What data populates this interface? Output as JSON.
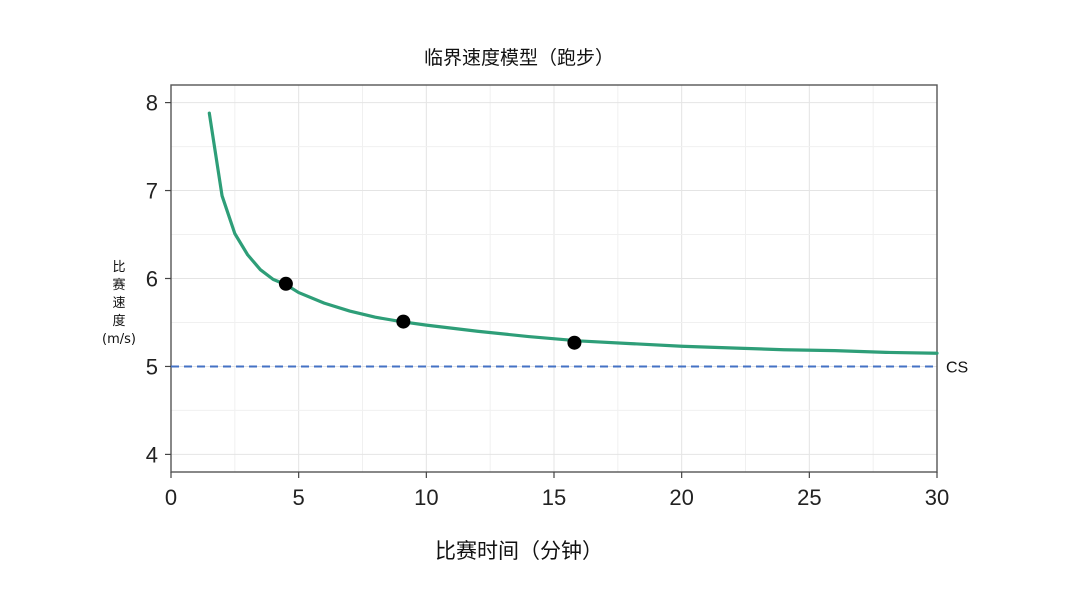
{
  "chart_data": {
    "type": "line",
    "title": "临界速度模型（跑步）",
    "xlabel": "比赛时间（分钟）",
    "ylabel_lines": [
      "比",
      "赛",
      "速",
      "度",
      "(m/s)"
    ],
    "xlim": [
      0,
      30
    ],
    "ylim": [
      3.8,
      8.2
    ],
    "xticks": [
      0,
      5,
      10,
      15,
      20,
      25,
      30
    ],
    "yticks": [
      4,
      5,
      6,
      7,
      8
    ],
    "grid": true,
    "legend": "none",
    "series": [
      {
        "kind": "curve",
        "color": "#2e9e78",
        "x": [
          1.5,
          2,
          2.5,
          3,
          3.5,
          4,
          4.5,
          5,
          6,
          7,
          8,
          9,
          10,
          12,
          14,
          16,
          18,
          20,
          22,
          24,
          26,
          28,
          30
        ],
        "y": [
          7.88,
          6.94,
          6.51,
          6.27,
          6.1,
          5.99,
          5.93,
          5.84,
          5.72,
          5.63,
          5.56,
          5.51,
          5.47,
          5.4,
          5.34,
          5.29,
          5.26,
          5.23,
          5.21,
          5.19,
          5.18,
          5.16,
          5.15
        ]
      },
      {
        "kind": "points",
        "color": "#000000",
        "x": [
          4.5,
          9.1,
          15.8
        ],
        "y": [
          5.94,
          5.51,
          5.27
        ]
      }
    ],
    "reference_line": {
      "y": 5.0,
      "label": "CS",
      "color": "#4472c4",
      "style": "dashed"
    }
  }
}
